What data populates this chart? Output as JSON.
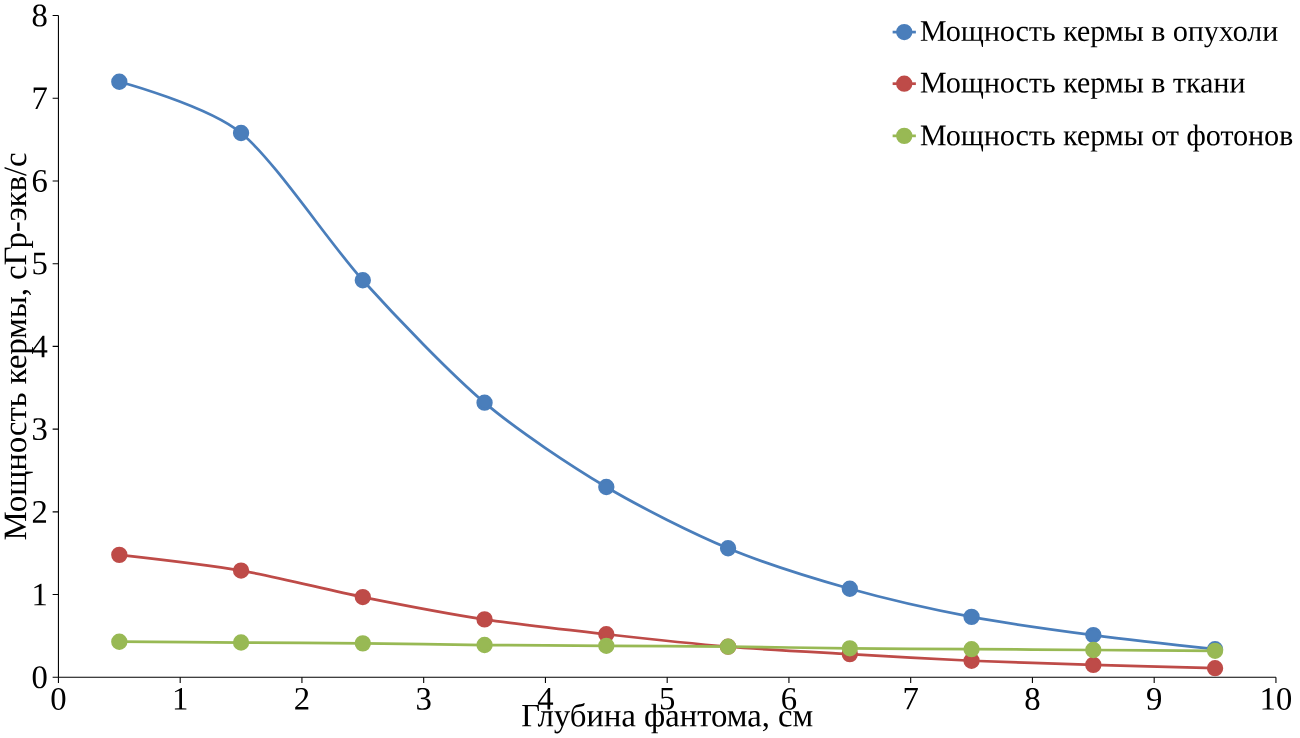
{
  "chart_data": {
    "type": "line",
    "xlabel": "Глубина фантома, см",
    "ylabel": "Мощность кермы, сГр-экв/с",
    "x": [
      0.5,
      1.5,
      2.5,
      3.5,
      4.5,
      5.5,
      6.5,
      7.5,
      8.5,
      9.5
    ],
    "series": [
      {
        "name": "Мощность кермы в опухоли",
        "color": "#4a7ebb",
        "values": [
          7.2,
          6.58,
          4.8,
          3.32,
          2.3,
          1.56,
          1.07,
          0.73,
          0.51,
          0.34
        ]
      },
      {
        "name": "Мощность кермы в ткани",
        "color": "#be4b48",
        "values": [
          1.48,
          1.29,
          0.97,
          0.7,
          0.52,
          0.37,
          0.28,
          0.2,
          0.15,
          0.11
        ]
      },
      {
        "name": "Мощность кермы от фотонов",
        "color": "#98b954",
        "values": [
          0.43,
          0.42,
          0.41,
          0.39,
          0.38,
          0.37,
          0.35,
          0.34,
          0.33,
          0.32
        ]
      }
    ],
    "xlim": [
      0,
      10
    ],
    "ylim": [
      0,
      8
    ],
    "xticks": [
      0,
      1,
      2,
      3,
      4,
      5,
      6,
      7,
      8,
      9,
      10
    ],
    "yticks": [
      0,
      1,
      2,
      3,
      4,
      5,
      6,
      7,
      8
    ],
    "grid": false,
    "legend": "top right",
    "marker": "circle",
    "line_style": "solid"
  }
}
